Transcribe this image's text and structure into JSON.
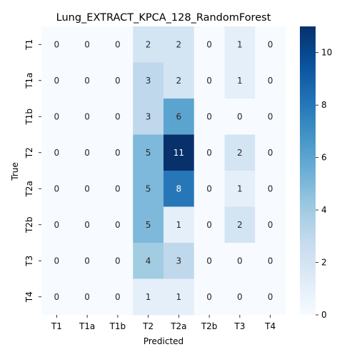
{
  "chart_data": {
    "type": "heatmap",
    "title": "Lung_EXTRACT_KPCA_128_RandomForest",
    "xlabel": "Predicted",
    "ylabel": "True",
    "x_categories": [
      "T1",
      "T1a",
      "T1b",
      "T2",
      "T2a",
      "T2b",
      "T3",
      "T4"
    ],
    "y_categories": [
      "T1",
      "T1a",
      "T1b",
      "T2",
      "T2a",
      "T2b",
      "T3",
      "T4"
    ],
    "values": [
      [
        0,
        0,
        0,
        2,
        2,
        0,
        1,
        0
      ],
      [
        0,
        0,
        0,
        3,
        2,
        0,
        1,
        0
      ],
      [
        0,
        0,
        0,
        3,
        6,
        0,
        0,
        0
      ],
      [
        0,
        0,
        0,
        5,
        11,
        0,
        2,
        0
      ],
      [
        0,
        0,
        0,
        5,
        8,
        0,
        1,
        0
      ],
      [
        0,
        0,
        0,
        5,
        1,
        0,
        2,
        0
      ],
      [
        0,
        0,
        0,
        4,
        3,
        0,
        0,
        0
      ],
      [
        0,
        0,
        0,
        1,
        1,
        0,
        0,
        0
      ]
    ],
    "colorbar": {
      "min": 0,
      "max": 11,
      "ticks": [
        "0",
        "2",
        "4",
        "6",
        "8",
        "10"
      ],
      "colormap": "Blues"
    }
  }
}
